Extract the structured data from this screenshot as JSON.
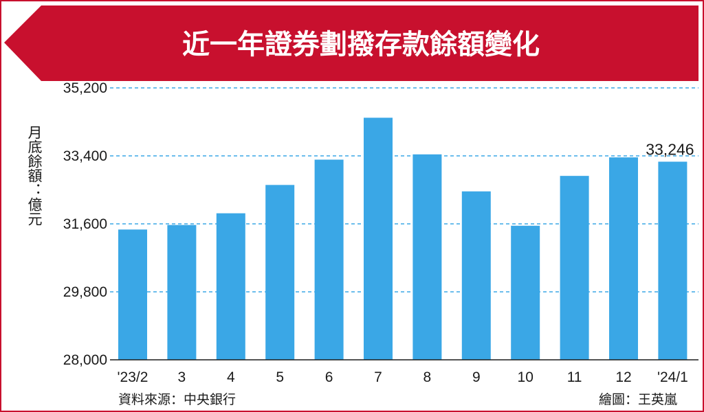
{
  "chart_data": {
    "type": "bar",
    "title": "近一年證券劃撥存款餘額變化",
    "ylabel": "月底餘額：億元",
    "categories": [
      "'23/2",
      "3",
      "4",
      "5",
      "6",
      "7",
      "8",
      "9",
      "10",
      "11",
      "12",
      "'24/1"
    ],
    "values": [
      31450,
      31570,
      31880,
      32630,
      33300,
      34410,
      33440,
      32460,
      31550,
      32870,
      33360,
      33246
    ],
    "ylim": [
      28000,
      35200
    ],
    "yticks": [
      "28,000",
      "29,800",
      "31,600",
      "33,400",
      "35,200"
    ],
    "ytick_values": [
      28000,
      29800,
      31600,
      33400,
      35200
    ],
    "grid": true,
    "bar_color": "#3aa7e6",
    "annotation": {
      "label": "33,246",
      "category_index": 11
    },
    "source": "資料來源：中央銀行",
    "credit": "繪圖：王英嵐"
  },
  "colors": {
    "banner": "#c8102e",
    "grid": "#3aa7e6",
    "bar": "#3aa7e6"
  }
}
